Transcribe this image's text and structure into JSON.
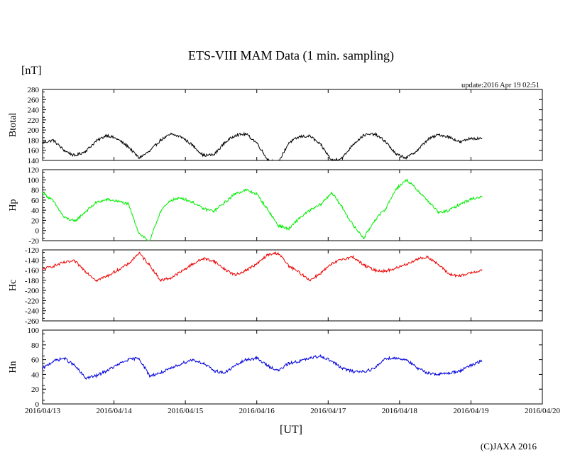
{
  "title": "ETS-VIII MAM Data (1 min. sampling)",
  "unit_label": "[nT]",
  "update_label": "update:2016 Apr 19 02:51",
  "xlabel": "[UT]",
  "copyright": "(C)JAXA 2016",
  "x_ticks": [
    "2016/04/13",
    "2016/04/14",
    "2016/04/15",
    "2016/04/16",
    "2016/04/17",
    "2016/04/18",
    "2016/04/19",
    "2016/04/20"
  ],
  "chart_data": [
    {
      "type": "line",
      "name": "Btotal",
      "ylabel": "Btotal",
      "color": "#000000",
      "x_range_days": [
        0,
        7
      ],
      "ylim": [
        140,
        280
      ],
      "y_ticks": [
        "280",
        "260",
        "240",
        "220",
        "200",
        "180",
        "160",
        "140"
      ],
      "x_days": [
        0.0,
        0.15,
        0.3,
        0.45,
        0.6,
        0.75,
        0.9,
        1.05,
        1.2,
        1.35,
        1.5,
        1.65,
        1.8,
        1.95,
        2.1,
        2.25,
        2.4,
        2.55,
        2.7,
        2.85,
        3.0,
        3.15,
        3.3,
        3.45,
        3.6,
        3.75,
        3.9,
        4.05,
        4.2,
        4.35,
        4.5,
        4.65,
        4.8,
        4.95,
        5.1,
        5.25,
        5.4,
        5.55,
        5.7,
        5.85,
        6.0,
        6.15
      ],
      "values": [
        175,
        180,
        160,
        149,
        158,
        178,
        190,
        182,
        167,
        145,
        158,
        180,
        192,
        186,
        170,
        150,
        151,
        175,
        190,
        192,
        175,
        142,
        136,
        175,
        187,
        188,
        170,
        140,
        145,
        172,
        190,
        192,
        178,
        152,
        145,
        160,
        182,
        191,
        186,
        176,
        184,
        183
      ]
    },
    {
      "type": "line",
      "name": "Hp",
      "ylabel": "Hp",
      "color": "#00ee00",
      "x_range_days": [
        0,
        7
      ],
      "ylim": [
        -20,
        120
      ],
      "y_ticks": [
        "120",
        "100",
        "80",
        "60",
        "40",
        "20",
        "0",
        "-20"
      ],
      "x_days": [
        0.0,
        0.15,
        0.3,
        0.45,
        0.6,
        0.75,
        0.9,
        1.05,
        1.2,
        1.35,
        1.5,
        1.65,
        1.8,
        1.95,
        2.1,
        2.25,
        2.4,
        2.55,
        2.7,
        2.85,
        3.0,
        3.15,
        3.3,
        3.45,
        3.6,
        3.75,
        3.9,
        4.05,
        4.2,
        4.35,
        4.5,
        4.65,
        4.8,
        4.95,
        5.1,
        5.25,
        5.4,
        5.55,
        5.7,
        5.85,
        6.0,
        6.15
      ],
      "values": [
        75,
        58,
        26,
        18,
        37,
        55,
        61,
        58,
        52,
        -5,
        -22,
        38,
        60,
        64,
        56,
        43,
        38,
        55,
        73,
        80,
        72,
        42,
        10,
        3,
        25,
        40,
        52,
        75,
        45,
        10,
        -15,
        20,
        42,
        82,
        100,
        80,
        58,
        35,
        40,
        52,
        62,
        67
      ]
    },
    {
      "type": "line",
      "name": "Hc",
      "ylabel": "Hc",
      "color": "#ee0000",
      "x_range_days": [
        0,
        7
      ],
      "ylim": [
        -260,
        -120
      ],
      "y_ticks": [
        "-120",
        "-140",
        "-160",
        "-180",
        "-200",
        "-220",
        "-240",
        "-260"
      ],
      "x_days": [
        0.0,
        0.15,
        0.3,
        0.45,
        0.6,
        0.75,
        0.9,
        1.05,
        1.2,
        1.35,
        1.5,
        1.65,
        1.8,
        1.95,
        2.1,
        2.25,
        2.4,
        2.55,
        2.7,
        2.85,
        3.0,
        3.15,
        3.3,
        3.45,
        3.6,
        3.75,
        3.9,
        4.05,
        4.2,
        4.35,
        4.5,
        4.65,
        4.8,
        4.95,
        5.1,
        5.25,
        5.4,
        5.55,
        5.7,
        5.85,
        6.0,
        6.15
      ],
      "values": [
        -158,
        -152,
        -145,
        -142,
        -162,
        -180,
        -172,
        -160,
        -148,
        -126,
        -150,
        -180,
        -175,
        -162,
        -148,
        -137,
        -142,
        -158,
        -170,
        -160,
        -148,
        -130,
        -126,
        -152,
        -165,
        -180,
        -165,
        -148,
        -138,
        -134,
        -150,
        -160,
        -162,
        -156,
        -148,
        -138,
        -134,
        -150,
        -168,
        -172,
        -165,
        -160
      ]
    },
    {
      "type": "line",
      "name": "Hn",
      "ylabel": "Hn",
      "color": "#0000dd",
      "x_range_days": [
        0,
        7
      ],
      "ylim": [
        0,
        100
      ],
      "y_ticks": [
        "100",
        "80",
        "60",
        "40",
        "20",
        "0"
      ],
      "x_days": [
        0.0,
        0.15,
        0.3,
        0.45,
        0.6,
        0.75,
        0.9,
        1.05,
        1.2,
        1.35,
        1.5,
        1.65,
        1.8,
        1.95,
        2.1,
        2.25,
        2.4,
        2.55,
        2.7,
        2.85,
        3.0,
        3.15,
        3.3,
        3.45,
        3.6,
        3.75,
        3.9,
        4.05,
        4.2,
        4.35,
        4.5,
        4.65,
        4.8,
        4.95,
        5.1,
        5.25,
        5.4,
        5.55,
        5.7,
        5.85,
        6.0,
        6.15
      ],
      "values": [
        48,
        58,
        62,
        52,
        35,
        38,
        45,
        53,
        60,
        62,
        38,
        42,
        48,
        55,
        60,
        55,
        45,
        42,
        52,
        60,
        62,
        52,
        45,
        55,
        58,
        62,
        65,
        58,
        48,
        44,
        44,
        48,
        62,
        62,
        60,
        48,
        42,
        40,
        42,
        45,
        52,
        58
      ]
    }
  ]
}
